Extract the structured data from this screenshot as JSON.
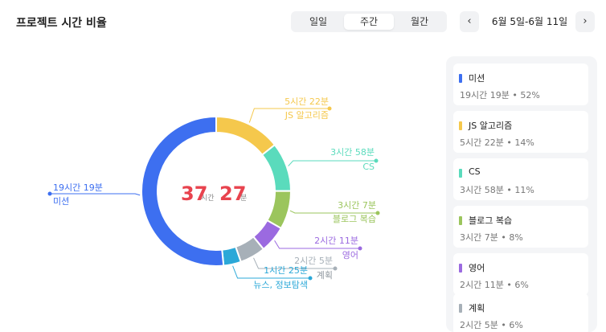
{
  "header": {
    "title": "프로젝트 시간 비율",
    "tabs": [
      {
        "label": "일일",
        "active": false
      },
      {
        "label": "주간",
        "active": true
      },
      {
        "label": "월간",
        "active": false
      }
    ],
    "prev_label": "‹",
    "next_label": "›",
    "date_range": "6월 5일-6월 11일"
  },
  "center": {
    "hours": "37",
    "hours_unit": "시간",
    "minutes": "27",
    "minutes_unit": "분"
  },
  "chart_data": {
    "type": "pie",
    "total_minutes": 2247,
    "series": [
      {
        "name": "JS 알고리즘",
        "duration": "5시간 22분",
        "minutes": 322,
        "percent": 14,
        "color": "#f5c84c"
      },
      {
        "name": "CS",
        "duration": "3시간 58분",
        "minutes": 238,
        "percent": 11,
        "color": "#5adbbc"
      },
      {
        "name": "블로그 복습",
        "duration": "3시간 7분",
        "minutes": 187,
        "percent": 8,
        "color": "#9bc55d"
      },
      {
        "name": "영어",
        "duration": "2시간 11분",
        "minutes": 131,
        "percent": 6,
        "color": "#9b6ae0"
      },
      {
        "name": "계획",
        "duration": "2시간 5분",
        "minutes": 125,
        "percent": 6,
        "color": "#a7b0b8"
      },
      {
        "name": "뉴스, 정보탐색",
        "duration": "1시간 25분",
        "minutes": 85,
        "percent": 4,
        "color": "#2ba8d8"
      },
      {
        "name": "미션",
        "duration": "19시간 19분",
        "minutes": 1159,
        "percent": 52,
        "color": "#3d6ff0"
      }
    ]
  },
  "legend": [
    {
      "name": "미션",
      "meta": "19시간 19분 • 52%",
      "color": "#3d6ff0"
    },
    {
      "name": "JS 알고리즘",
      "meta": "5시간 22분 • 14%",
      "color": "#f5c84c"
    },
    {
      "name": "CS",
      "meta": "3시간 58분 • 11%",
      "color": "#5adbbc"
    },
    {
      "name": "블로그 복습",
      "meta": "3시간 7분 • 8%",
      "color": "#9bc55d"
    },
    {
      "name": "영어",
      "meta": "2시간 11분 • 6%",
      "color": "#9b6ae0"
    },
    {
      "name": "계획",
      "meta": "2시간 5분 • 6%",
      "color": "#a7b0b8"
    }
  ],
  "colors": {
    "center_number": "#e8434e",
    "panel_bg": "#f4f5f7"
  }
}
